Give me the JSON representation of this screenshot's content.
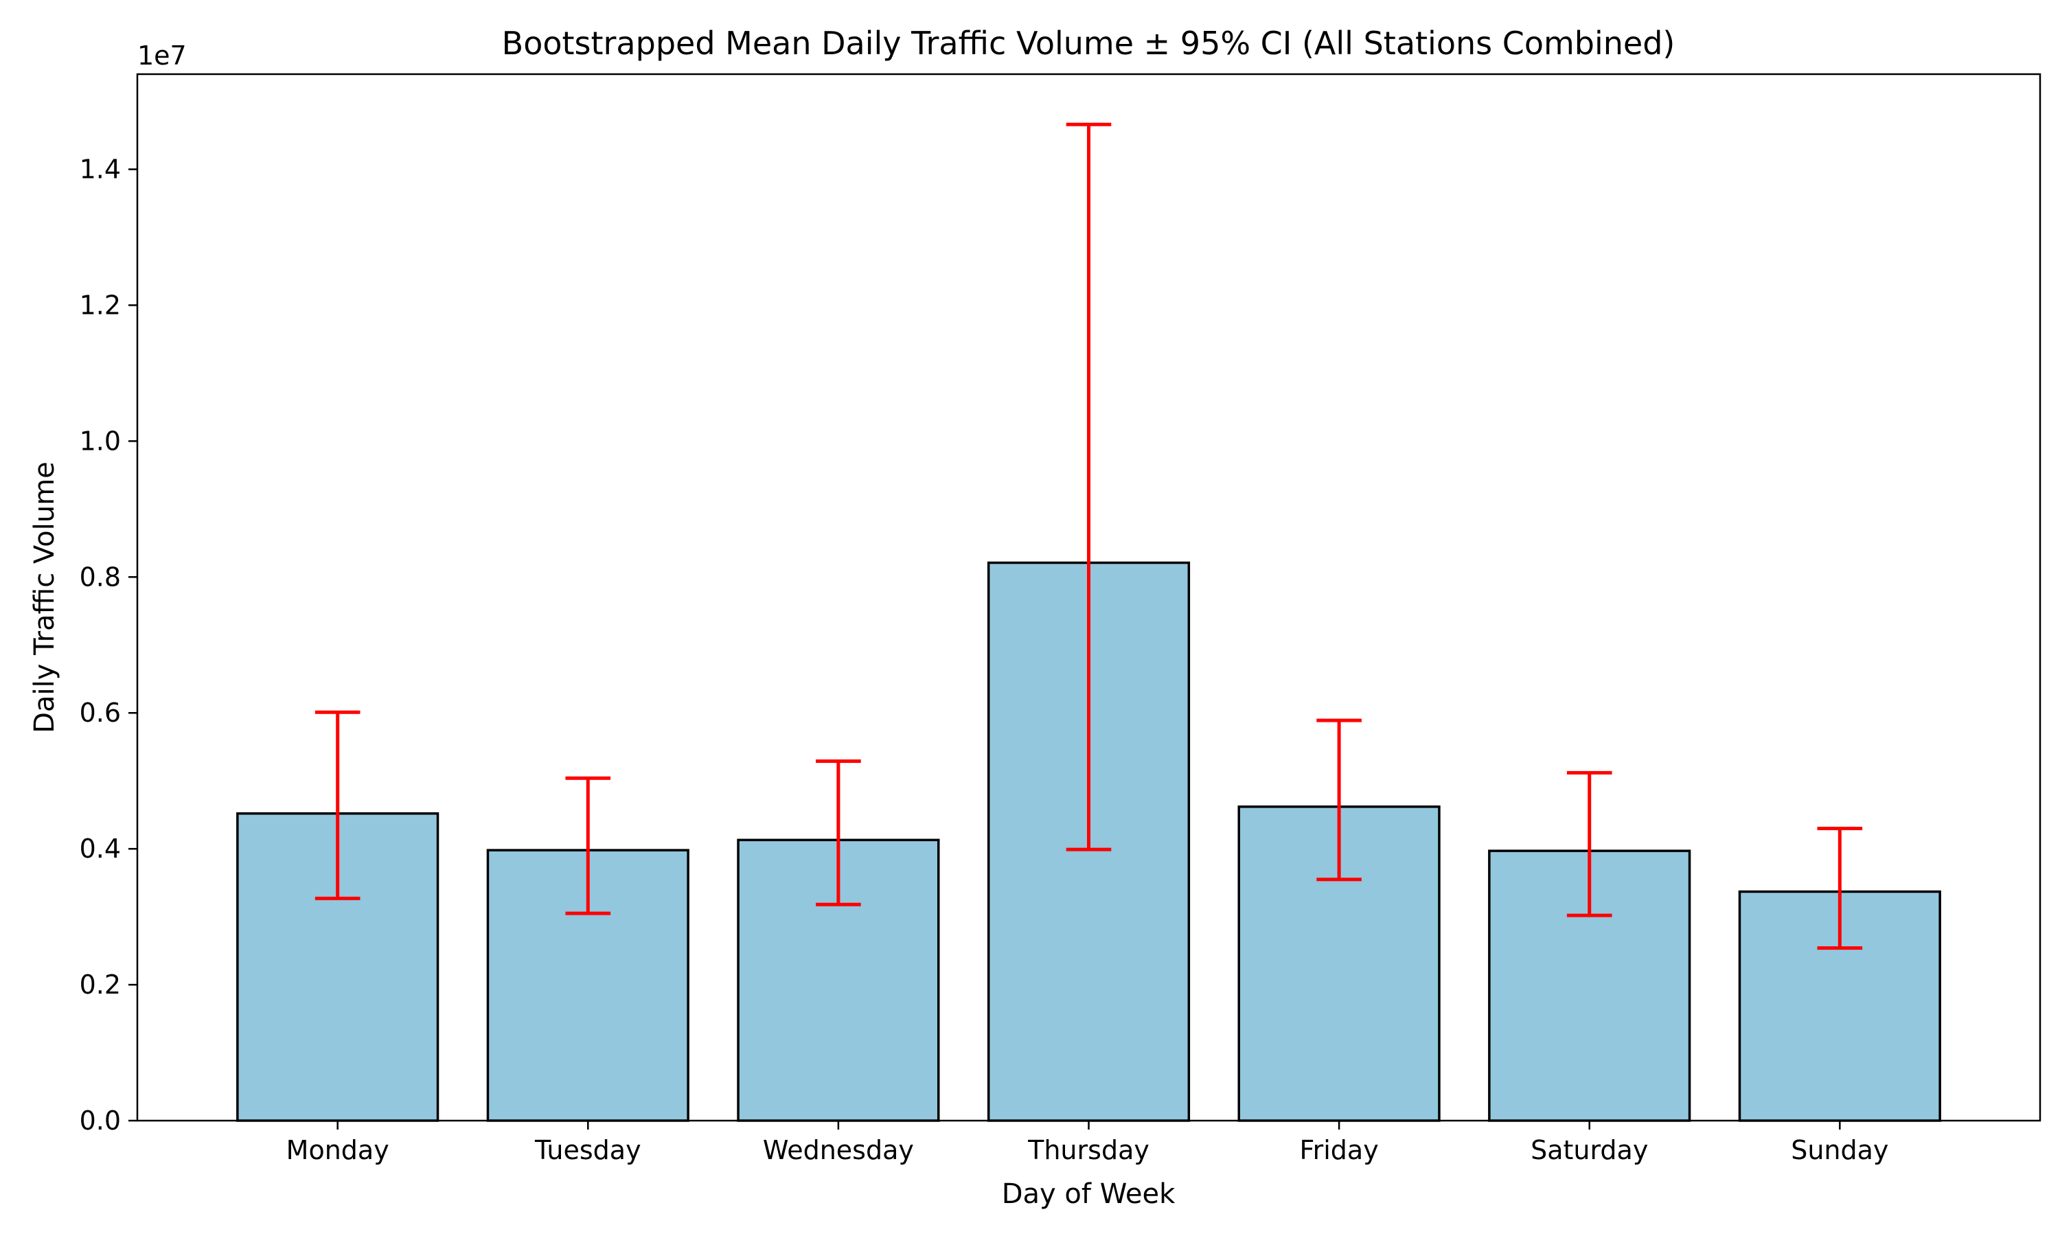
{
  "chart_data": {
    "type": "bar",
    "title": "Bootstrapped Mean Daily Traffic Volume ± 95% CI (All Stations Combined)",
    "xlabel": "Day of Week",
    "ylabel": "Daily Traffic Volume",
    "y_offset_label": "1e7",
    "categories": [
      "Monday",
      "Tuesday",
      "Wednesday",
      "Thursday",
      "Friday",
      "Saturday",
      "Sunday"
    ],
    "values": [
      4520000,
      3980000,
      4130000,
      8210000,
      4620000,
      3970000,
      3370000
    ],
    "ci_low": [
      3270000,
      3050000,
      3180000,
      3990000,
      3550000,
      3020000,
      2540000
    ],
    "ci_high": [
      6010000,
      5040000,
      5290000,
      14660000,
      5890000,
      5120000,
      4300000
    ],
    "ylim": [
      0,
      15400000
    ],
    "yticks": [
      0,
      2000000,
      4000000,
      6000000,
      8000000,
      10000000,
      12000000,
      14000000
    ],
    "ytick_labels": [
      "0.0",
      "0.2",
      "0.4",
      "0.6",
      "0.8",
      "1.0",
      "1.2",
      "1.4"
    ],
    "bar_color": "#92c7de",
    "edge_color": "#000000",
    "error_color": "#ff0000",
    "grid": false,
    "legend": false
  }
}
